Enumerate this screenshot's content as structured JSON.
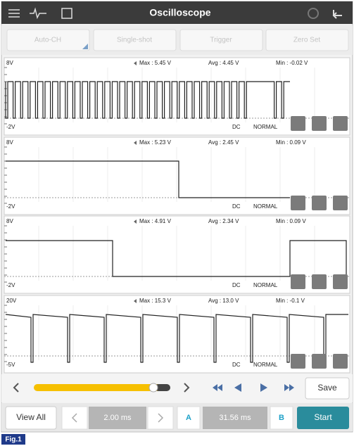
{
  "header": {
    "title": "Oscilloscope"
  },
  "toolbar": [
    "Auto-CH",
    "Single-shot",
    "Trigger",
    "Zero Set"
  ],
  "channels": [
    {
      "top": "8V",
      "max": "Max : 5.45 V",
      "avg": "Avg : 4.45 V",
      "min": "Min : -0.02 V",
      "bottom": "-2V",
      "coupling": "DC",
      "mode": "NORMAL"
    },
    {
      "top": "8V",
      "max": "Max : 5.23 V",
      "avg": "Avg : 2.45 V",
      "min": "Min : 0.09 V",
      "bottom": "-2V",
      "coupling": "DC",
      "mode": "NORMAL"
    },
    {
      "top": "8V",
      "max": "Max : 4.91 V",
      "avg": "Avg : 2.34 V",
      "min": "Min : 0.09 V",
      "bottom": "-2V",
      "coupling": "DC",
      "mode": "NORMAL"
    },
    {
      "top": "20V",
      "max": "Max : 15.3 V",
      "avg": "Avg : 13.0 V",
      "min": "Min : -0.1 V",
      "bottom": "-5V",
      "coupling": "DC",
      "mode": "NORMAL"
    }
  ],
  "controls": {
    "save": "Save",
    "view_all": "View All",
    "time_div": "2.00 ms",
    "cursor_a": "A",
    "cursor_delta": "31.56 ms",
    "cursor_b": "B",
    "start": "Start"
  },
  "caption": "Fig.1"
}
